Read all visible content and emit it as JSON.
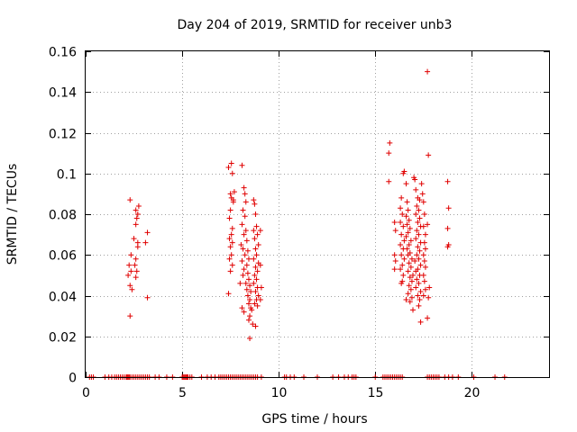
{
  "chart_data": {
    "type": "scatter",
    "title": "Day 204 of 2019, SRMTID for receiver unb3",
    "xlabel": "GPS time / hours",
    "ylabel": "SRMTID / TECUs",
    "xlim": [
      0,
      24
    ],
    "ylim": [
      0,
      0.16
    ],
    "grid": true,
    "marker": "+",
    "marker_color": "#e00000",
    "x_ticks": [
      {
        "value": 0,
        "label": "0"
      },
      {
        "value": 5,
        "label": "5"
      },
      {
        "value": 10,
        "label": "10"
      },
      {
        "value": 15,
        "label": "15"
      },
      {
        "value": 20,
        "label": "20"
      }
    ],
    "y_ticks": [
      {
        "value": 0,
        "label": "0"
      },
      {
        "value": 0.02,
        "label": "0.02"
      },
      {
        "value": 0.04,
        "label": "0.04"
      },
      {
        "value": 0.06,
        "label": "0.06"
      },
      {
        "value": 0.08,
        "label": "0.08"
      },
      {
        "value": 0.1,
        "label": "0.1"
      },
      {
        "value": 0.12,
        "label": "0.12"
      },
      {
        "value": 0.14,
        "label": "0.14"
      },
      {
        "value": 0.16,
        "label": "0.16"
      }
    ],
    "series": [
      {
        "name": "SRMTID",
        "points": [
          [
            2.3,
            0.087
          ],
          [
            2.3,
            0.03
          ],
          [
            2.25,
            0.055
          ],
          [
            2.35,
            0.052
          ],
          [
            2.3,
            0.045
          ],
          [
            2.4,
            0.043
          ],
          [
            2.35,
            0.06
          ],
          [
            2.2,
            0.05
          ],
          [
            2.6,
            0.082
          ],
          [
            2.65,
            0.078
          ],
          [
            2.7,
            0.08
          ],
          [
            2.75,
            0.084
          ],
          [
            2.6,
            0.075
          ],
          [
            2.7,
            0.066
          ],
          [
            2.6,
            0.058
          ],
          [
            2.65,
            0.052
          ],
          [
            2.7,
            0.064
          ],
          [
            2.6,
            0.049
          ],
          [
            2.55,
            0.055
          ],
          [
            2.5,
            0.068
          ],
          [
            3.2,
            0.071
          ],
          [
            3.1,
            0.066
          ],
          [
            3.2,
            0.039
          ],
          [
            7.4,
            0.103
          ],
          [
            7.55,
            0.105
          ],
          [
            7.6,
            0.1
          ],
          [
            7.5,
            0.09
          ],
          [
            7.55,
            0.088
          ],
          [
            7.65,
            0.086
          ],
          [
            7.5,
            0.082
          ],
          [
            7.45,
            0.078
          ],
          [
            7.6,
            0.073
          ],
          [
            7.55,
            0.07
          ],
          [
            7.45,
            0.068
          ],
          [
            7.6,
            0.066
          ],
          [
            7.5,
            0.064
          ],
          [
            7.55,
            0.06
          ],
          [
            7.45,
            0.058
          ],
          [
            7.6,
            0.055
          ],
          [
            7.5,
            0.052
          ],
          [
            7.4,
            0.041
          ],
          [
            7.7,
            0.091
          ],
          [
            7.65,
            0.087
          ],
          [
            8.1,
            0.104
          ],
          [
            8.2,
            0.093
          ],
          [
            8.25,
            0.09
          ],
          [
            8.3,
            0.086
          ],
          [
            8.15,
            0.082
          ],
          [
            8.25,
            0.079
          ],
          [
            8.1,
            0.075
          ],
          [
            8.3,
            0.072
          ],
          [
            8.2,
            0.07
          ],
          [
            8.35,
            0.067
          ],
          [
            8.05,
            0.065
          ],
          [
            8.15,
            0.063
          ],
          [
            8.4,
            0.062
          ],
          [
            8.25,
            0.06
          ],
          [
            8.45,
            0.058
          ],
          [
            8.1,
            0.057
          ],
          [
            8.35,
            0.055
          ],
          [
            8.2,
            0.053
          ],
          [
            8.4,
            0.051
          ],
          [
            8.15,
            0.05
          ],
          [
            8.45,
            0.048
          ],
          [
            8.3,
            0.046
          ],
          [
            8.5,
            0.045
          ],
          [
            8.35,
            0.043
          ],
          [
            8.55,
            0.042
          ],
          [
            8.4,
            0.04
          ],
          [
            8.5,
            0.038
          ],
          [
            8.45,
            0.036
          ],
          [
            8.55,
            0.034
          ],
          [
            8.6,
            0.033
          ],
          [
            8.5,
            0.03
          ],
          [
            8.45,
            0.028
          ],
          [
            8.5,
            0.019
          ],
          [
            8.0,
            0.046
          ],
          [
            8.1,
            0.034
          ],
          [
            8.2,
            0.032
          ],
          [
            8.7,
            0.087
          ],
          [
            8.75,
            0.085
          ],
          [
            8.8,
            0.08
          ],
          [
            8.85,
            0.074
          ],
          [
            8.7,
            0.072
          ],
          [
            8.9,
            0.07
          ],
          [
            8.75,
            0.068
          ],
          [
            8.95,
            0.065
          ],
          [
            8.8,
            0.063
          ],
          [
            8.85,
            0.06
          ],
          [
            8.7,
            0.058
          ],
          [
            8.95,
            0.056
          ],
          [
            8.8,
            0.054
          ],
          [
            8.9,
            0.052
          ],
          [
            8.75,
            0.05
          ],
          [
            8.85,
            0.048
          ],
          [
            8.7,
            0.046
          ],
          [
            8.9,
            0.044
          ],
          [
            8.8,
            0.042
          ],
          [
            8.95,
            0.04
          ],
          [
            8.85,
            0.038
          ],
          [
            8.75,
            0.036
          ],
          [
            8.9,
            0.035
          ],
          [
            8.65,
            0.026
          ],
          [
            8.8,
            0.025
          ],
          [
            9.05,
            0.072
          ],
          [
            9.05,
            0.055
          ],
          [
            9.1,
            0.044
          ],
          [
            9.05,
            0.038
          ],
          [
            15.75,
            0.115
          ],
          [
            15.7,
            0.11
          ],
          [
            15.7,
            0.096
          ],
          [
            16.0,
            0.076
          ],
          [
            16.05,
            0.072
          ],
          [
            16.0,
            0.06
          ],
          [
            16.05,
            0.057
          ],
          [
            16.0,
            0.053
          ],
          [
            16.3,
            0.083
          ],
          [
            16.35,
            0.088
          ],
          [
            16.4,
            0.08
          ],
          [
            16.3,
            0.076
          ],
          [
            16.45,
            0.074
          ],
          [
            16.35,
            0.07
          ],
          [
            16.5,
            0.067
          ],
          [
            16.3,
            0.065
          ],
          [
            16.45,
            0.063
          ],
          [
            16.35,
            0.06
          ],
          [
            16.5,
            0.058
          ],
          [
            16.4,
            0.055
          ],
          [
            16.3,
            0.053
          ],
          [
            16.45,
            0.05
          ],
          [
            16.4,
            0.047
          ],
          [
            16.35,
            0.046
          ],
          [
            16.45,
            0.1
          ],
          [
            16.5,
            0.101
          ],
          [
            16.6,
            0.095
          ],
          [
            16.65,
            0.086
          ],
          [
            16.7,
            0.082
          ],
          [
            16.6,
            0.079
          ],
          [
            16.75,
            0.077
          ],
          [
            16.65,
            0.075
          ],
          [
            16.8,
            0.073
          ],
          [
            16.7,
            0.071
          ],
          [
            16.6,
            0.069
          ],
          [
            16.85,
            0.067
          ],
          [
            16.75,
            0.065
          ],
          [
            16.65,
            0.063
          ],
          [
            16.8,
            0.061
          ],
          [
            16.7,
            0.06
          ],
          [
            16.9,
            0.058
          ],
          [
            16.75,
            0.056
          ],
          [
            16.85,
            0.054
          ],
          [
            16.7,
            0.052
          ],
          [
            16.95,
            0.05
          ],
          [
            16.8,
            0.049
          ],
          [
            16.9,
            0.047
          ],
          [
            16.75,
            0.045
          ],
          [
            16.85,
            0.043
          ],
          [
            16.7,
            0.041
          ],
          [
            16.9,
            0.039
          ],
          [
            16.8,
            0.037
          ],
          [
            16.6,
            0.038
          ],
          [
            16.95,
            0.033
          ],
          [
            17.0,
            0.098
          ],
          [
            17.05,
            0.097
          ],
          [
            17.1,
            0.092
          ],
          [
            17.2,
            0.088
          ],
          [
            17.3,
            0.087
          ],
          [
            17.15,
            0.084
          ],
          [
            17.25,
            0.082
          ],
          [
            17.1,
            0.08
          ],
          [
            17.3,
            0.078
          ],
          [
            17.2,
            0.076
          ],
          [
            17.35,
            0.074
          ],
          [
            17.15,
            0.072
          ],
          [
            17.25,
            0.07
          ],
          [
            17.1,
            0.068
          ],
          [
            17.35,
            0.066
          ],
          [
            17.2,
            0.064
          ],
          [
            17.3,
            0.062
          ],
          [
            17.15,
            0.06
          ],
          [
            17.25,
            0.058
          ],
          [
            17.05,
            0.057
          ],
          [
            17.35,
            0.055
          ],
          [
            17.2,
            0.053
          ],
          [
            17.1,
            0.052
          ],
          [
            17.3,
            0.05
          ],
          [
            17.15,
            0.048
          ],
          [
            17.25,
            0.046
          ],
          [
            17.1,
            0.044
          ],
          [
            17.35,
            0.042
          ],
          [
            17.2,
            0.04
          ],
          [
            17.3,
            0.038
          ],
          [
            17.25,
            0.035
          ],
          [
            17.35,
            0.027
          ],
          [
            17.4,
            0.095
          ],
          [
            17.45,
            0.09
          ],
          [
            17.5,
            0.086
          ],
          [
            17.55,
            0.08
          ],
          [
            17.5,
            0.074
          ],
          [
            17.6,
            0.07
          ],
          [
            17.55,
            0.066
          ],
          [
            17.6,
            0.063
          ],
          [
            17.5,
            0.06
          ],
          [
            17.55,
            0.057
          ],
          [
            17.6,
            0.054
          ],
          [
            17.5,
            0.05
          ],
          [
            17.55,
            0.047
          ],
          [
            17.6,
            0.043
          ],
          [
            17.5,
            0.04
          ],
          [
            17.7,
            0.15
          ],
          [
            17.75,
            0.109
          ],
          [
            17.7,
            0.075
          ],
          [
            17.8,
            0.044
          ],
          [
            17.75,
            0.039
          ],
          [
            17.7,
            0.029
          ],
          [
            18.75,
            0.096
          ],
          [
            18.8,
            0.083
          ],
          [
            18.75,
            0.073
          ],
          [
            18.8,
            0.065
          ],
          [
            18.75,
            0.064
          ]
        ]
      }
    ],
    "zero_points_x": [
      0.2,
      0.3,
      0.4,
      1.0,
      1.2,
      1.35,
      1.5,
      1.6,
      1.7,
      1.8,
      1.9,
      2.0,
      2.1,
      2.15,
      2.2,
      2.25,
      2.3,
      2.4,
      2.5,
      2.6,
      2.7,
      2.8,
      2.9,
      3.0,
      3.1,
      3.2,
      3.3,
      3.6,
      3.8,
      4.2,
      4.5,
      5.0,
      5.05,
      5.1,
      5.15,
      5.2,
      5.25,
      5.3,
      5.4,
      5.5,
      6.0,
      6.3,
      6.5,
      6.7,
      6.9,
      7.0,
      7.1,
      7.2,
      7.3,
      7.4,
      7.5,
      7.6,
      7.7,
      7.8,
      7.9,
      8.0,
      8.1,
      8.2,
      8.3,
      8.4,
      8.5,
      8.6,
      8.7,
      8.8,
      8.9,
      9.1,
      10.3,
      10.4,
      10.6,
      10.8,
      11.3,
      12.0,
      12.8,
      13.1,
      13.4,
      13.6,
      13.8,
      13.9,
      14.0,
      15.0,
      15.4,
      15.5,
      15.6,
      15.7,
      15.8,
      15.9,
      16.0,
      16.1,
      16.2,
      16.3,
      16.4,
      17.7,
      17.8,
      17.9,
      18.0,
      18.1,
      18.2,
      18.3,
      18.6,
      18.8,
      19.0,
      19.3,
      20.1,
      21.2,
      21.7
    ]
  }
}
